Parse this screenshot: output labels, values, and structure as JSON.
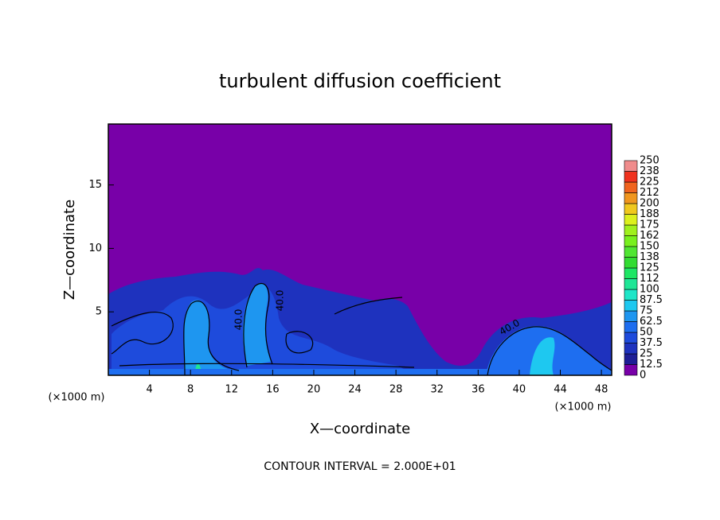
{
  "chart_data": {
    "type": "contour",
    "title": "turbulent diffusion coefficient",
    "x_label": "X—coordinate",
    "y_label": "Z—coordinate",
    "unit_labels": [
      "(×1000 m)",
      "(×1000 m)"
    ],
    "footer": "CONTOUR INTERVAL = 2.000E+01",
    "contour_labels": [
      "40.0",
      "40.0",
      "40.0"
    ],
    "xlim": [
      0,
      49
    ],
    "ylim": [
      0,
      19.8
    ],
    "xticks": [
      4,
      8,
      12,
      16,
      20,
      24,
      28,
      32,
      36,
      40,
      44,
      48
    ],
    "yticks": [
      5,
      10,
      15
    ],
    "colorbar": {
      "levels": [
        0,
        12.5,
        25,
        37.5,
        50,
        62.5,
        75,
        87.5,
        100,
        {
          "value": 112.5,
          "label": "112"
        },
        125,
        {
          "value": 137.5,
          "label": "138"
        },
        150,
        {
          "value": 162.5,
          "label": "162"
        },
        175,
        {
          "value": 187.5,
          "label": "188"
        },
        200,
        {
          "value": 212.5,
          "label": "212"
        },
        225,
        {
          "value": 237.5,
          "label": "238"
        },
        250
      ],
      "colors": [
        "#7800a8",
        "#1e1e96",
        "#1e32be",
        "#1e4bdc",
        "#1e6ef0",
        "#1e96f0",
        "#1ec8f0",
        "#1ee6c8",
        "#1ee696",
        "#1ee664",
        "#32dc32",
        "#50e632",
        "#78f01e",
        "#a0f01e",
        "#dcf01e",
        "#f0c81e",
        "#f0961e",
        "#f0641e",
        "#f0321e",
        "#f08c8c"
      ]
    }
  }
}
